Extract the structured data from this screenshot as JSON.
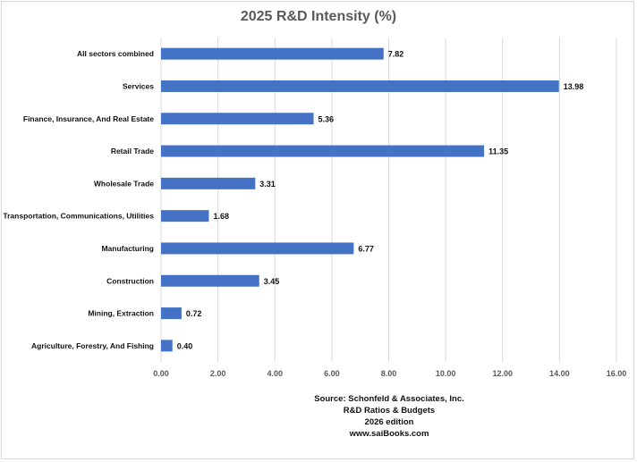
{
  "chart_data": {
    "type": "bar",
    "orientation": "horizontal",
    "title": "2025 R&D Intensity (%)",
    "categories": [
      "All sectors combined",
      "Services",
      "Finance, Insurance, And Real Estate",
      "Retail Trade",
      "Wholesale Trade",
      "Transportation, Communications, Utilities",
      "Manufacturing",
      "Construction",
      "Mining, Extraction",
      "Agriculture, Forestry, And Fishing"
    ],
    "values": [
      7.82,
      13.98,
      5.36,
      11.35,
      3.31,
      1.68,
      6.77,
      3.45,
      0.72,
      0.4
    ],
    "value_labels": [
      "7.82",
      "13.98",
      "5.36",
      "11.35",
      "3.31",
      "1.68",
      "6.77",
      "3.45",
      "0.72",
      "0.40"
    ],
    "xlim": [
      0,
      16
    ],
    "x_ticks": [
      0,
      2,
      4,
      6,
      8,
      10,
      12,
      14,
      16
    ],
    "x_tick_labels": [
      "0.00",
      "2.00",
      "4.00",
      "6.00",
      "8.00",
      "10.00",
      "12.00",
      "14.00",
      "16.00"
    ],
    "xlabel": "",
    "ylabel": "",
    "grid": "vertical",
    "legend": "none",
    "bar_color": "#4472C4",
    "source_lines": [
      "Source: Schonfeld & Associates, Inc.",
      "R&D Ratios & Budgets",
      "2026 edition",
      "www.saiBooks.com"
    ]
  }
}
